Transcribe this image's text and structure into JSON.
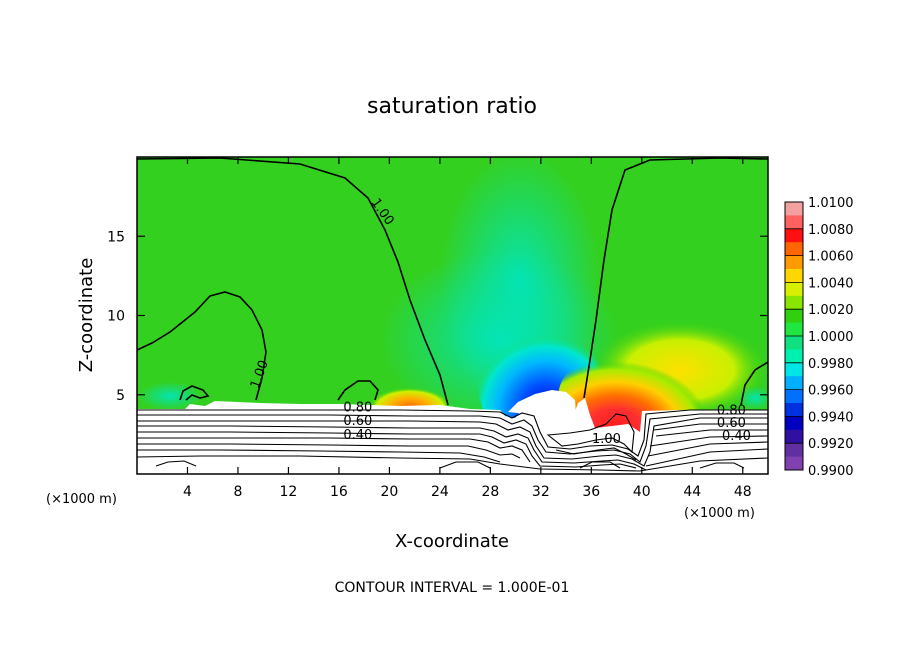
{
  "chart_data": {
    "type": "heatmap",
    "title": "saturation ratio",
    "xlabel": "X-coordinate",
    "ylabel": "Z-coordinate",
    "x_unit_left": "(×1000 m)",
    "x_unit_right": "(×1000 m)",
    "footer": "CONTOUR INTERVAL = 1.000E-01",
    "xlim": [
      0,
      50
    ],
    "ylim": [
      0,
      20
    ],
    "xticks": [
      4,
      8,
      12,
      16,
      20,
      24,
      28,
      32,
      36,
      40,
      44,
      48
    ],
    "xtick_labels": [
      "4",
      "8",
      "12",
      "16",
      "20",
      "24",
      "28",
      "32",
      "36",
      "40",
      "44",
      "48"
    ],
    "yticks": [
      5,
      10,
      15
    ],
    "ytick_labels": [
      "5",
      "10",
      "15"
    ],
    "colorbar": {
      "levels": [
        "1.0100",
        "1.0080",
        "1.0060",
        "1.0040",
        "1.0020",
        "1.0000",
        "0.9980",
        "0.9960",
        "0.9940",
        "0.9920",
        "0.9900"
      ],
      "colors": [
        "#f2a0a0",
        "#ff6060",
        "#ff1010",
        "#ff6600",
        "#ff9a00",
        "#ffd700",
        "#d8f000",
        "#88e600",
        "#30d010",
        "#20e640",
        "#10e080",
        "#00f0b0",
        "#00e6e6",
        "#00b0ff",
        "#0070ff",
        "#0030e0",
        "#0000c0",
        "#3010a0",
        "#6030a0",
        "#8040b0"
      ]
    },
    "contour_labels": [
      {
        "text": "1.00",
        "x": 19.2,
        "y": 16.4
      },
      {
        "text": "1.00",
        "x": 10.0,
        "y": 6.2
      },
      {
        "text": "0.80",
        "x": 17.5,
        "y": 3.95
      },
      {
        "text": "0.60",
        "x": 17.5,
        "y": 3.1
      },
      {
        "text": "0.40",
        "x": 17.5,
        "y": 2.2
      },
      {
        "text": "1.00",
        "x": 37.2,
        "y": 1.95
      },
      {
        "text": "0.80",
        "x": 47.1,
        "y": 3.75
      },
      {
        "text": "0.60",
        "x": 47.1,
        "y": 2.95
      },
      {
        "text": "0.40",
        "x": 47.5,
        "y": 2.15
      }
    ]
  }
}
